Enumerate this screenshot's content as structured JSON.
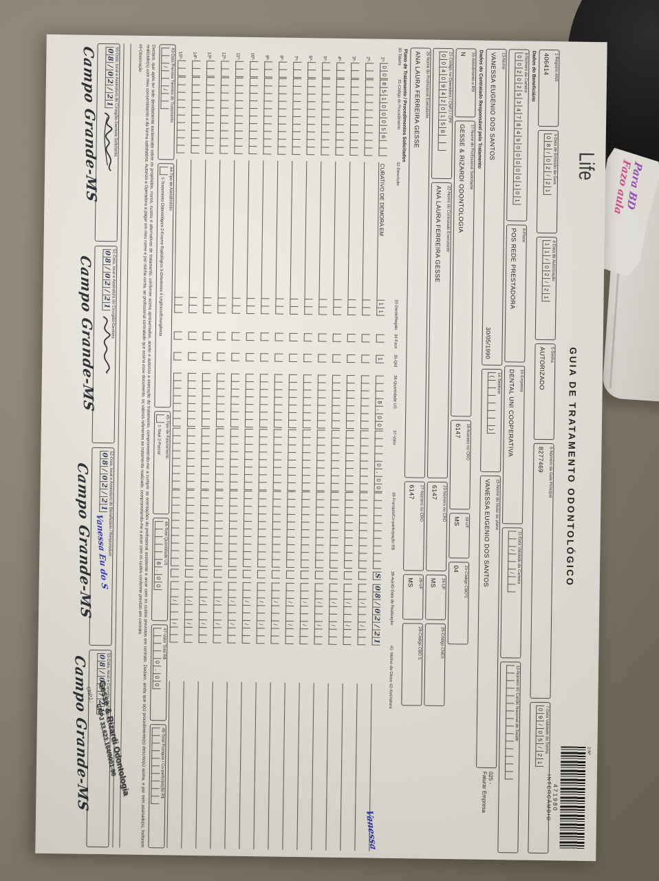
{
  "scene": {
    "sticky_note": {
      "line1": "Para BD",
      "line2": "Fazo aula"
    }
  },
  "header": {
    "logo": "Life",
    "title": "GUIA DE TRATAMENTO ODONTOLÓGICO",
    "barcode_label": "2-Nº",
    "barcode_number": "471980",
    "barcode_subtitle": "INTERCÂMBIO"
  },
  "sections": {
    "beneficiario": "Dados do Beneficiário",
    "contratado": "Dados do Contratado Responsável pelo Tratamento",
    "plano_tratamento": "Plano de Tratamento / Procedimentos Solicitados"
  },
  "fields": {
    "registro_ans": {
      "label": "1-Registro ANS",
      "value": "406414"
    },
    "emissao": {
      "label": "3-Data de Emissão da Guia",
      "comb": "08/02/21"
    },
    "autorizacao": {
      "label": "4-Data de Autorização",
      "comb": "11/02/21"
    },
    "senha": {
      "label": "5-Senha",
      "value": "AUTORIZADO"
    },
    "guia_principal": {
      "label": "6-Número da Guia Principal",
      "value": "8277469"
    },
    "validade_senha": {
      "label": "7-Data Validade da Senha",
      "comb": "09/05/21"
    },
    "numero_carteira": {
      "label": "8-Número da Carteira",
      "comb": "00202534784900000101"
    },
    "plano": {
      "label": "9-Plano",
      "value": "POS REDE PRESTADORA"
    },
    "empresa": {
      "label": "10-Empresa",
      "value": "DENTAL UNI  COOPERATIVA"
    },
    "validade_carteira": {
      "label": "11-Data Validade da Carteira",
      "comb": "  /  /  "
    },
    "cartao_nacional": {
      "label": "12-Número do Cartão Nacional de Saúde",
      "comb": "               "
    },
    "nome": {
      "label": "13-Nome",
      "value": "VANESSA EUGENIO DOS SANTOS",
      "nascimento": "30/05/1990"
    },
    "telefone": {
      "label": "14-Telefone",
      "comb": "(      )"
    },
    "titular": {
      "label": "15-Nome do titular do plano",
      "value": "VANESSA EUGENIO DOS SANTOS"
    },
    "faturar_linha1": "025 -",
    "faturar_linha2": "Faturar Empresa",
    "atendimento_rn": {
      "label": "16-Atendimento a RN",
      "value": "N"
    },
    "solicitante": {
      "label": "17-Nome do Profissional Solicitante",
      "value": "GESSE & RIZARDI ODONTOLOGIA"
    },
    "cro18": {
      "label": "18-Número no CRO",
      "value": "6147"
    },
    "uf19": {
      "label": "19-UF",
      "value": "MS"
    },
    "cbos20": {
      "label": "20-Código CBO'S",
      "value": "04"
    },
    "codigo_operadora": {
      "label": "21-Código na Operadora / CNPJ / CPF",
      "comb": "00409420158  "
    },
    "executante22": {
      "label": "22-Nome do Contratado Executante",
      "value": "ANA LAURA FERREIRA GESSE"
    },
    "cro23": {
      "label": "23-Número no CRO",
      "value": "6147"
    },
    "uf24": {
      "label": "24-UF",
      "value": "MS"
    },
    "cnes25": {
      "label": "25-Código CNES",
      "value": ""
    },
    "executante26": {
      "label": "26-Nome do Profissional Executante",
      "value": "ANA LAURA FERREIRA GESSE"
    },
    "cro27": {
      "label": "27-Número no CRO",
      "value": "6147"
    },
    "uf28": {
      "label": "28-UF",
      "value": "MS"
    },
    "cbos29": {
      "label": "29-Código CBO S",
      "value": ""
    }
  },
  "table": {
    "headers": [
      "30-Tabela",
      "31-Código do Procedimento",
      "32-Descrição",
      "33-Dente/Região",
      "34-Face",
      "35-Qtd",
      "36-Quantidade US",
      "37-Valor",
      "38-Franquia/Co-participação R$",
      "39-Aut",
      "40-Data de Realização",
      "41- Motivo da Glosa",
      "42-Assinatura"
    ],
    "rows": [
      {
        "label": "1º-",
        "tabela": "00",
        "codigo": "85100056  ",
        "desc": "CURATIVO DE DEMORA EM",
        "dente": "11",
        "face": " ",
        "qtd": "1",
        "us": "   8,00",
        "valor": "    0,00",
        "franquia": "          ",
        "aut": "S",
        "data": "08/02/21",
        "assinatura": "Vanessa"
      },
      {
        "label": "2º-",
        "tabela": "  ",
        "codigo": "          ",
        "desc": "",
        "dente": "  ",
        "face": " ",
        "qtd": " ",
        "us": "       ",
        "valor": "        ",
        "franquia": "          ",
        "aut": " ",
        "data": "  /  /  ",
        "assinatura": ""
      },
      {
        "label": "3º-",
        "tabela": "  ",
        "codigo": "          ",
        "desc": "",
        "dente": "  ",
        "face": " ",
        "qtd": " ",
        "us": "       ",
        "valor": "        ",
        "franquia": "          ",
        "aut": " ",
        "data": "  /  /  ",
        "assinatura": ""
      },
      {
        "label": "4º-",
        "tabela": "  ",
        "codigo": "          ",
        "desc": "",
        "dente": "  ",
        "face": " ",
        "qtd": " ",
        "us": "       ",
        "valor": "        ",
        "franquia": "          ",
        "aut": " ",
        "data": "  /  /  ",
        "assinatura": ""
      },
      {
        "label": "5º-",
        "tabela": "  ",
        "codigo": "          ",
        "desc": "",
        "dente": "  ",
        "face": " ",
        "qtd": " ",
        "us": "       ",
        "valor": "        ",
        "franquia": "          ",
        "aut": " ",
        "data": "  /  /  ",
        "assinatura": ""
      },
      {
        "label": "6º-",
        "tabela": "  ",
        "codigo": "          ",
        "desc": "",
        "dente": "  ",
        "face": " ",
        "qtd": " ",
        "us": "       ",
        "valor": "        ",
        "franquia": "          ",
        "aut": " ",
        "data": "  /  /  ",
        "assinatura": ""
      },
      {
        "label": "7º-",
        "tabela": "  ",
        "codigo": "          ",
        "desc": "",
        "dente": "  ",
        "face": " ",
        "qtd": " ",
        "us": "       ",
        "valor": "        ",
        "franquia": "          ",
        "aut": " ",
        "data": "  /  /  ",
        "assinatura": ""
      },
      {
        "label": "8º-",
        "tabela": "  ",
        "codigo": "          ",
        "desc": "",
        "dente": "  ",
        "face": " ",
        "qtd": " ",
        "us": "       ",
        "valor": "        ",
        "franquia": "          ",
        "aut": " ",
        "data": "  /  /  ",
        "assinatura": ""
      },
      {
        "label": "9º-",
        "tabela": "  ",
        "codigo": "          ",
        "desc": "",
        "dente": "  ",
        "face": " ",
        "qtd": " ",
        "us": "       ",
        "valor": "        ",
        "franquia": "          ",
        "aut": " ",
        "data": "  /  /  ",
        "assinatura": ""
      },
      {
        "label": "10º-",
        "tabela": "  ",
        "codigo": "          ",
        "desc": "",
        "dente": "  ",
        "face": " ",
        "qtd": " ",
        "us": "       ",
        "valor": "        ",
        "franquia": "          ",
        "aut": " ",
        "data": "  /  /  ",
        "assinatura": ""
      },
      {
        "label": "11º-",
        "tabela": "  ",
        "codigo": "          ",
        "desc": "",
        "dente": "  ",
        "face": " ",
        "qtd": " ",
        "us": "       ",
        "valor": "        ",
        "franquia": "          ",
        "aut": " ",
        "data": "  /  /  ",
        "assinatura": ""
      },
      {
        "label": "12º-",
        "tabela": "  ",
        "codigo": "          ",
        "desc": "",
        "dente": "  ",
        "face": " ",
        "qtd": " ",
        "us": "       ",
        "valor": "        ",
        "franquia": "          ",
        "aut": " ",
        "data": "  /  /  ",
        "assinatura": ""
      },
      {
        "label": "13º-",
        "tabela": "  ",
        "codigo": "          ",
        "desc": "",
        "dente": "  ",
        "face": " ",
        "qtd": " ",
        "us": "       ",
        "valor": "        ",
        "franquia": "          ",
        "aut": " ",
        "data": "  /  /  ",
        "assinatura": ""
      },
      {
        "label": "14º-",
        "tabela": "  ",
        "codigo": "          ",
        "desc": "",
        "dente": "  ",
        "face": " ",
        "qtd": " ",
        "us": "       ",
        "valor": "        ",
        "franquia": "          ",
        "aut": " ",
        "data": "  /  /  ",
        "assinatura": ""
      },
      {
        "label": "15º-",
        "tabela": "  ",
        "codigo": "          ",
        "desc": "",
        "dente": "  ",
        "face": " ",
        "qtd": " ",
        "us": "       ",
        "valor": "        ",
        "franquia": "          ",
        "aut": " ",
        "data": "  /  /  ",
        "assinatura": ""
      }
    ]
  },
  "totals": {
    "termino": {
      "label": "43-Data Prevista Término do Tratamento",
      "comb": "  /  /  "
    },
    "tipo_atendimento": {
      "label": "44-Tipo de Atendimento",
      "comb": " ",
      "options": "1-Tratamento Odontológico  2-Exame Radiológico  3-Ortodontia  4-Urgência/Emergência"
    },
    "tipo_faturamento": {
      "label": "45-Tipo de Faturamento",
      "comb": " ",
      "options": "1-Total  2-Parcial"
    },
    "total_us": {
      "label": "46-Total Quantidade US",
      "comb": "     8,00"
    },
    "valor_total": {
      "label": "47-Valor Total R$",
      "comb": "    0,00"
    },
    "total_franquia": {
      "label": "48-Total Franquia / Co-participação R$",
      "comb": "          "
    }
  },
  "declaration": "Declaro, que após ter sido devidamente esclarecido sobre os propósitos, riscos, custos e alternativas de tratamento, conforme acima apresentados, aceito e autorizo a execução do tratamento, comprometendo-me a cumprir as orientações do profissional assistente e arcar com os custos previstos em contrato. Declaro, ainda que o(s) procedimento(s) descrito(s) acima, e por mim assinado(s), foi/foram realizado(s) com meu consentimento e de forma satisfatória. Autorizo a Operadora a pagar em meu nome e por minha conta, ao profissional contratado que assina esse documento, os valores referentes ao tratamento realizado, comprometendo-me a arcar com os custos conforme previsto em contrato.",
  "observacao_label": "49-Observação",
  "signatures": {
    "s50": {
      "label": "50-Data, local e Assinatura do Cirurgião-Dentista Solicitante",
      "date": "08/02/21",
      "city": "Campo Grande-MS"
    },
    "s51": {
      "label": "51-Data, local e Assinatura do Cirurgião-Dentista",
      "date": "08/02/21",
      "city": "Campo Grande-MS"
    },
    "s52": {
      "label": "52-Data, local e Assinatura do Beneficiário / Responsável",
      "date": "08/02/21",
      "signature": "Vanessa Eu do S",
      "city": "Campo Grande-MS"
    },
    "s53": {
      "label": "53-Data, local e Carimbo da Empresa",
      "date": "08/02/21",
      "city": "Campo Grande-MS"
    }
  },
  "stamp": {
    "line1": "Gesse & Rizardi Odontologia",
    "line2": "CNPJ 33.623.164/0001-90",
    "line3": "CNPJ.:"
  }
}
